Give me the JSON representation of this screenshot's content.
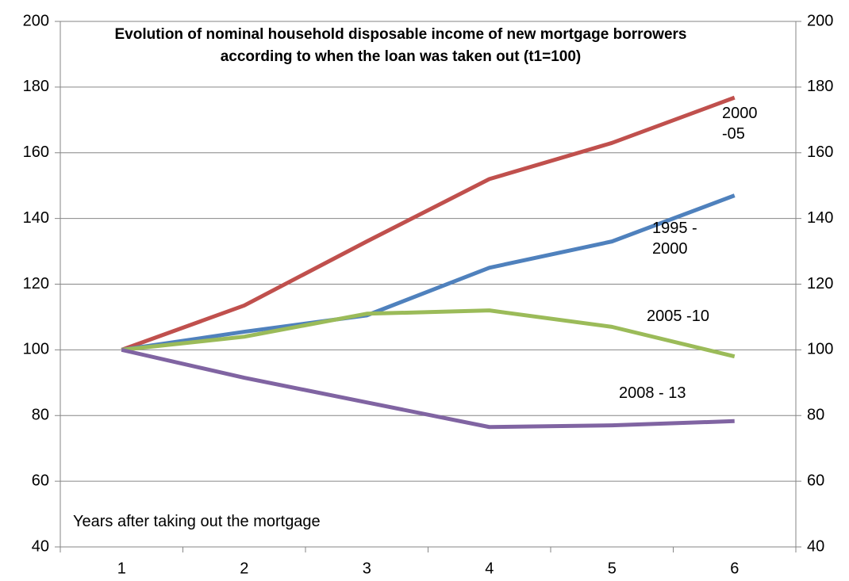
{
  "chart_data": {
    "type": "line",
    "title": "Evolution of nominal household disposable income of new mortgage borrowers according to when the loan was taken out (t1=100)",
    "x_label": "Years after taking out the mortgage",
    "categories": [
      "1",
      "2",
      "3",
      "4",
      "5",
      "6"
    ],
    "series": [
      {
        "name": "2000 -05",
        "color": "#c0504d",
        "values": [
          100,
          113.5,
          133,
          152,
          163,
          176.8
        ]
      },
      {
        "name": "1995 - 2000",
        "color": "#4f81bd",
        "values": [
          100,
          105.5,
          110.5,
          125,
          133,
          147
        ]
      },
      {
        "name": "2005 -10",
        "color": "#9bbb59",
        "values": [
          100,
          104,
          111,
          112,
          107,
          98
        ]
      },
      {
        "name": "2008 - 13",
        "color": "#8064a2",
        "values": [
          100,
          91.5,
          84,
          76.5,
          77,
          78.3
        ]
      }
    ],
    "ylim": [
      40,
      200
    ],
    "yticks": [
      40,
      60,
      80,
      100,
      120,
      140,
      160,
      180,
      200
    ],
    "y2lim": [
      40,
      200
    ],
    "y2ticks": [
      40,
      60,
      80,
      100,
      120,
      140,
      160,
      180,
      200
    ],
    "grid": true
  }
}
